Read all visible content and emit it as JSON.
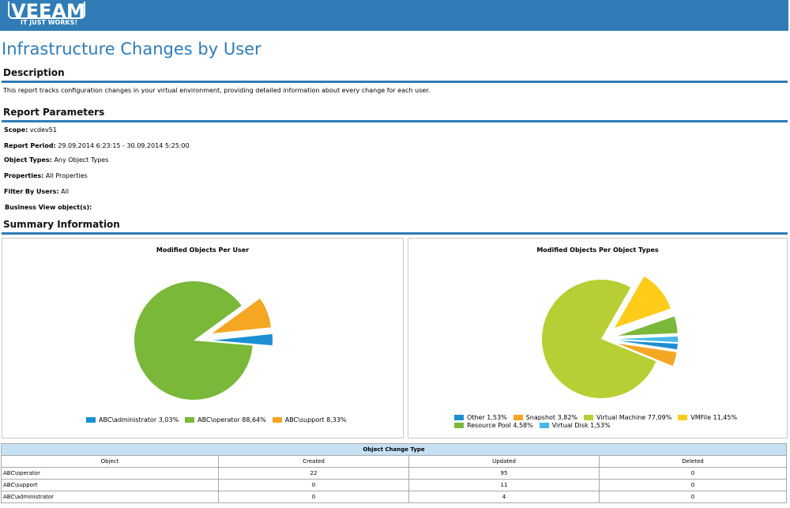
{
  "header": {
    "logo_word": "VEEAM",
    "logo_tagline": "IT JUST WORKS!"
  },
  "report": {
    "title": "Infrastructure Changes by User",
    "description_heading": "Description",
    "description": "This report tracks configuration changes in your virtual environment, providing detailed information about every change for each user.",
    "params_heading": "Report Parameters",
    "params": [
      {
        "label": "Scope:",
        "value": "vcdev51"
      },
      {
        "label": "Report Period:",
        "value": "29.09.2014 6:23:15 - 30.09.2014 5:25:00"
      },
      {
        "label": "Object Types:",
        "value": "Any Object Types"
      },
      {
        "label": "Properties:",
        "value": "All Properties"
      },
      {
        "label": "Filter By Users:",
        "value": "All"
      },
      {
        "label": "Business View object(s):",
        "value": ""
      }
    ],
    "summary_heading": "Summary Information"
  },
  "chart_data": [
    {
      "type": "pie",
      "title": "Modified Objects Per User",
      "slices": [
        {
          "label": "ABC\\administrator",
          "value": 3.03,
          "display": "ABC\\administrator 3,03%",
          "color": "#1b8fd2"
        },
        {
          "label": "ABC\\operator",
          "value": 88.64,
          "display": "ABC\\operator 88,64%",
          "color": "#7ab83a"
        },
        {
          "label": "ABC\\support",
          "value": 8.33,
          "display": "ABC\\support 8,33%",
          "color": "#f5a623"
        }
      ],
      "legend_position": "bottom"
    },
    {
      "type": "pie",
      "title": "Modified Objects Per Object Types",
      "slices": [
        {
          "label": "Other",
          "value": 1.53,
          "display": "Other 1,53%",
          "color": "#1b8fd2"
        },
        {
          "label": "Snapshot",
          "value": 3.82,
          "display": "Snapshot 3,82%",
          "color": "#f5a623"
        },
        {
          "label": "Virtual Machine",
          "value": 77.09,
          "display": "Virtual Machine 77,09%",
          "color": "#b7cf35"
        },
        {
          "label": "VMFile",
          "value": 11.45,
          "display": "VMFile 11,45%",
          "color": "#ffcc1a"
        },
        {
          "label": "Resource Pool",
          "value": 4.58,
          "display": "Resource Pool 4,58%",
          "color": "#7ab83a"
        },
        {
          "label": "Virtual Disk",
          "value": 1.53,
          "display": "Virtual Disk 1,53%",
          "color": "#46b8e6"
        }
      ],
      "legend_position": "bottom"
    }
  ],
  "table": {
    "caption": "Object Change Type",
    "columns": [
      "Object",
      "Created",
      "Updated",
      "Deleted"
    ],
    "rows": [
      [
        "ABC\\operator",
        "22",
        "95",
        "0"
      ],
      [
        "ABC\\support",
        "0",
        "11",
        "0"
      ],
      [
        "ABC\\administrator",
        "0",
        "4",
        "0"
      ]
    ]
  }
}
